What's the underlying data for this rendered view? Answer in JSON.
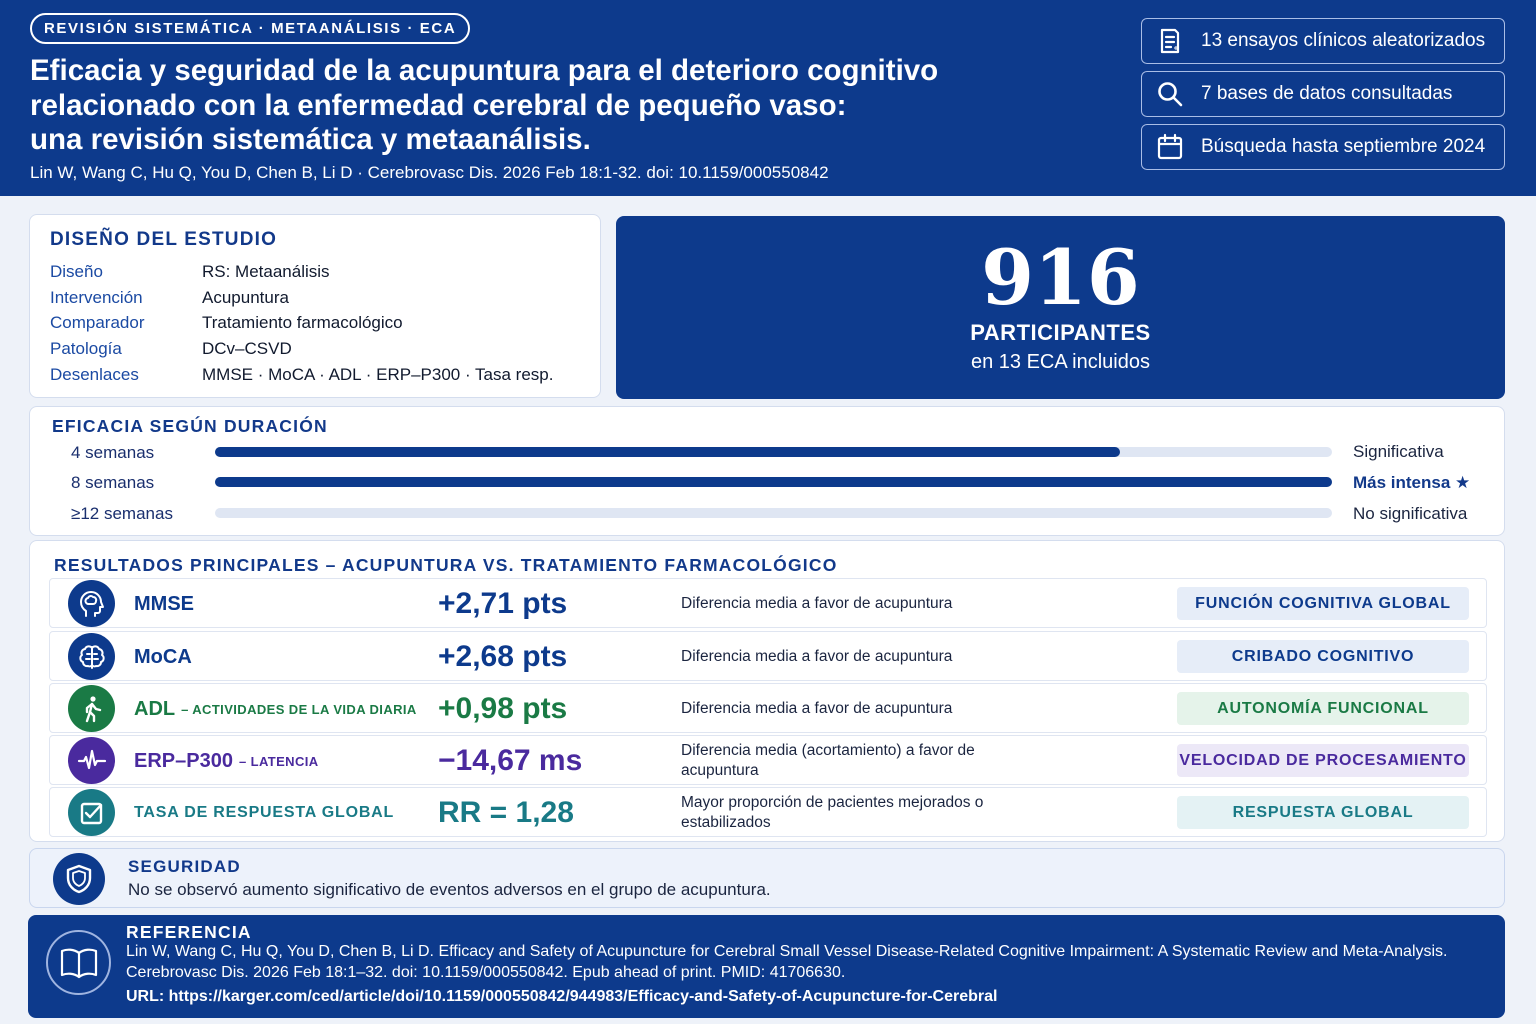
{
  "header": {
    "tag": "REVISIÓN SISTEMÁTICA · METAANÁLISIS · ECA",
    "title_lines": [
      "Eficacia y seguridad de la acupuntura para el deterioro cognitivo",
      "relacionado con la enfermedad cerebral de pequeño vaso:",
      "una revisión sistemática y metaanálisis."
    ],
    "citation": "Lin W, Wang C, Hu Q, You D, Chen B, Li D · Cerebrovasc Dis. 2026 Feb 18:1-32. doi: 10.1159/000550842",
    "stats": [
      {
        "icon": "document-list-icon",
        "text": "13 ensayos clínicos aleatorizados"
      },
      {
        "icon": "search-icon",
        "text": "7 bases de datos consultadas"
      },
      {
        "icon": "calendar-icon",
        "text": "Búsqueda hasta septiembre 2024"
      }
    ]
  },
  "design": {
    "title": "DISEÑO DEL ESTUDIO",
    "rows": [
      {
        "key": "Diseño",
        "value": "RS: Metaanálisis"
      },
      {
        "key": "Intervención",
        "value": "Acupuntura"
      },
      {
        "key": "Comparador",
        "value": "Tratamiento farmacológico"
      },
      {
        "key": "Patología",
        "value": "DCv–CSVD"
      },
      {
        "key": "Desenlaces",
        "value": "MMSE · MoCA · ADL · ERP–P300 · Tasa resp."
      }
    ]
  },
  "participants": {
    "number": "916",
    "label": "PARTICIPANTES",
    "sub": "en 13 ECA incluidos"
  },
  "duration": {
    "title": "EFICACIA SEGÚN DURACIÓN",
    "rows": [
      {
        "label": "4 semanas",
        "fill_percent": 81,
        "verdict": "Significativa",
        "bold": false
      },
      {
        "label": "8 semanas",
        "fill_percent": 100,
        "verdict": "Más intensa ★",
        "bold": true
      },
      {
        "label": "≥12 semanas",
        "fill_percent": 0,
        "verdict": "No significativa",
        "bold": false
      }
    ]
  },
  "results": {
    "title": "RESULTADOS PRINCIPALES – ACUPUNTURA VS. TRATAMIENTO FARMACOLÓGICO",
    "rows": [
      {
        "icon": "brain-head-icon",
        "name": "MMSE",
        "sub": "",
        "value": "+2,71 pts",
        "desc": "Diferencia media a favor de acupuntura",
        "category": "FUNCIÓN COGNITIVA GLOBAL",
        "color": "#0d3a8c",
        "cat_bg": "#e6edf8"
      },
      {
        "icon": "brain-icon",
        "name": "MoCA",
        "sub": "",
        "value": "+2,68 pts",
        "desc": "Diferencia media a favor de acupuntura",
        "category": "CRIBADO COGNITIVO",
        "color": "#0d3a8c",
        "cat_bg": "#e6edf8"
      },
      {
        "icon": "walking-person-icon",
        "name": "ADL",
        "sub": "– ACTIVIDADES DE LA VIDA DIARIA",
        "value": "+0,98 pts",
        "desc": "Diferencia media a favor de acupuntura",
        "category": "AUTONOMÍA FUNCIONAL",
        "color": "#1a7a45",
        "cat_bg": "#e5f3ea"
      },
      {
        "icon": "waveform-icon",
        "name": "ERP–P300",
        "sub": "– LATENCIA",
        "value": "−14,67 ms",
        "desc": "Diferencia media (acortamiento) a favor de acupuntura",
        "category": "VELOCIDAD DE PROCESAMIENTO",
        "color": "#4a2a9e",
        "cat_bg": "#ece8f7"
      },
      {
        "icon": "checkbox-icon",
        "name": "TASA DE RESPUESTA GLOBAL",
        "sub": "",
        "value": "RR = 1,28",
        "desc": "Mayor proporción de pacientes mejorados o estabilizados",
        "category": "RESPUESTA GLOBAL",
        "color": "#197a86",
        "cat_bg": "#e4f2f4"
      }
    ]
  },
  "safety": {
    "title": "SEGURIDAD",
    "text": "No se observó aumento significativo de eventos adversos en el grupo de acupuntura."
  },
  "reference": {
    "title": "REFERENCIA",
    "lines": [
      "Lin W, Wang C, Hu Q, You D, Chen B, Li D. Efficacy and Safety of Acupuncture for Cerebral Small Vessel Disease-Related Cognitive Impairment: A Systematic Review and Meta-Analysis.",
      "Cerebrovasc Dis. 2026 Feb 18:1–32. doi: 10.1159/000550842. Epub ahead of print. PMID: 41706630.",
      "URL: https://karger.com/ced/article/doi/10.1159/000550842/944983/Efficacy-and-Safety-of-Acupuncture-for-Cerebral"
    ]
  }
}
